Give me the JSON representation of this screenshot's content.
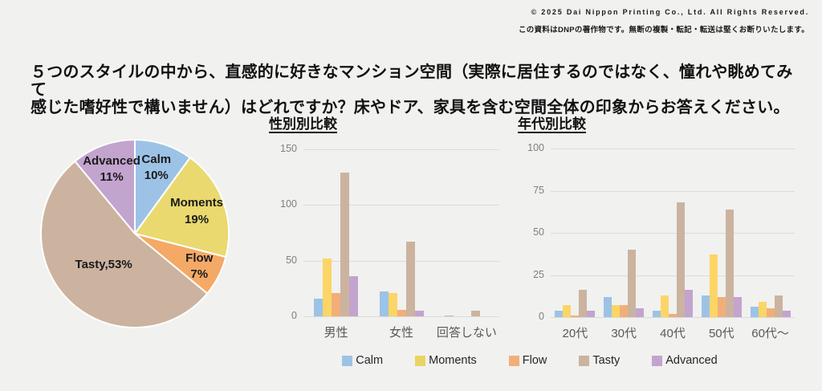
{
  "background": "#F1F1EF",
  "copyright": {
    "line1": "© 2025 Dai Nippon Printing Co., Ltd. All Rights Reserved.",
    "line2": "この資料はDNPの著作物です。無断の複製・転記・転送は堅くお断りいたします。"
  },
  "question": {
    "line1": "５つのスタイルの中から、直感的に好きなマンション空間（実際に居住するのではなく、憧れや眺めてみて",
    "line2": "感じた嗜好性で構いません）はどれですか？床やドア、家具を含む空間全体の印象からお答えください。"
  },
  "chart_data": [
    {
      "type": "pie",
      "title": "",
      "labels": [
        "Calm",
        "Moments",
        "Flow",
        "Tasty",
        "Advanced"
      ],
      "values": [
        10,
        19,
        7,
        53,
        11
      ],
      "unit": "%",
      "label_lines": [
        [
          "Calm",
          "10%"
        ],
        [
          "Moments",
          "19%"
        ],
        [
          "Flow",
          "7%"
        ],
        [
          "Tasty,53%"
        ],
        [
          "Advanced",
          "11%"
        ]
      ],
      "colors": [
        "#9CC3E6",
        "#E9D96E",
        "#F5A966",
        "#CBB3A0",
        "#C2A4CF"
      ],
      "start_angle": 0,
      "direction": "clockwise",
      "slice_border_color": "#FFFFFF"
    },
    {
      "type": "bar",
      "title": "性別別比較",
      "categories": [
        "男性",
        "女性",
        "回答しない"
      ],
      "series": [
        {
          "name": "Calm",
          "color": "#9CC3E6",
          "values": [
            16,
            22,
            1
          ]
        },
        {
          "name": "Moments",
          "color": "#FBD566",
          "values": [
            52,
            21,
            0
          ]
        },
        {
          "name": "Flow",
          "color": "#F2AE79",
          "values": [
            21,
            6,
            0
          ]
        },
        {
          "name": "Tasty",
          "color": "#CBB3A0",
          "values": [
            129,
            67,
            5
          ]
        },
        {
          "name": "Advanced",
          "color": "#C2A4CF",
          "values": [
            36,
            5,
            0
          ]
        }
      ],
      "xlabel": "",
      "ylabel": "",
      "ylim": [
        0,
        150
      ],
      "yticks": [
        0,
        50,
        100,
        150
      ],
      "grid": true,
      "legend_position": "bottom-shared"
    },
    {
      "type": "bar",
      "title": "年代別比較",
      "categories": [
        "20代",
        "30代",
        "40代",
        "50代",
        "60代〜"
      ],
      "series": [
        {
          "name": "Calm",
          "color": "#9CC3E6",
          "values": [
            4,
            12,
            4,
            13,
            6
          ]
        },
        {
          "name": "Moments",
          "color": "#FBD566",
          "values": [
            7,
            7,
            13,
            37,
            9
          ]
        },
        {
          "name": "Flow",
          "color": "#F2AE79",
          "values": [
            1,
            7,
            2,
            12,
            5
          ]
        },
        {
          "name": "Tasty",
          "color": "#CBB3A0",
          "values": [
            16,
            40,
            68,
            64,
            13
          ]
        },
        {
          "name": "Advanced",
          "color": "#C2A4CF",
          "values": [
            4,
            5,
            16,
            12,
            4
          ]
        }
      ],
      "xlabel": "",
      "ylabel": "",
      "ylim": [
        0,
        100
      ],
      "yticks": [
        0,
        25,
        50,
        75,
        100
      ],
      "grid": true,
      "legend_position": "bottom-shared"
    }
  ],
  "legend": {
    "items": [
      {
        "label": "Calm",
        "color": "#9CC3E6"
      },
      {
        "label": "Moments",
        "color": "#E9D463"
      },
      {
        "label": "Flow",
        "color": "#F2AE79"
      },
      {
        "label": "Tasty",
        "color": "#CBB3A0"
      },
      {
        "label": "Advanced",
        "color": "#C2A4CF"
      }
    ]
  }
}
